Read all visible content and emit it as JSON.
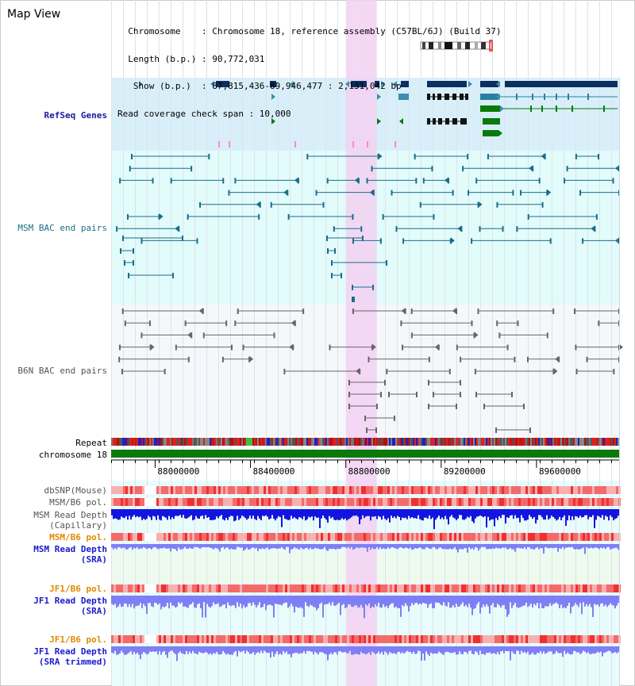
{
  "panel": {
    "title": "Map View"
  },
  "info_lines": [
    "  Chromosome    : Chromosome 18, reference assembly (C57BL/6J) (Build 37)",
    "  Length (b.p.) : 90,772,031",
    "   Show (b.p.)  : 87,815,436-89,946,477 : 2,131,042 bp",
    "Read coverage check span : 10,000"
  ],
  "tracks": [
    {
      "label": "RefSeq Genes",
      "color": "#1a1aa0"
    },
    {
      "label": "MSM BAC end pairs",
      "color": "#1a6e8a"
    },
    {
      "label": "B6N BAC end pairs",
      "color": "#555555"
    },
    {
      "label": "Repeat",
      "color": "#000000"
    },
    {
      "label": "chromosome 18",
      "color": "#000000"
    },
    {
      "label": "dbSNP(Mouse)",
      "color": "#555555"
    },
    {
      "label": "MSM/B6 pol.",
      "color": "#555555"
    },
    {
      "label": "MSM Read Depth\n(Capillary)",
      "color": "#555555"
    },
    {
      "label": "MSM/B6 pol.",
      "color": "#e08a00"
    },
    {
      "label": "MSM Read Depth\n(SRA)",
      "color": "#1a1ad0"
    },
    {
      "label": "JF1/B6 pol.",
      "color": "#e08a00"
    },
    {
      "label": "JF1 Read Depth\n(SRA)",
      "color": "#1a1ad0"
    },
    {
      "label": "JF1/B6 pol.",
      "color": "#e08a00"
    },
    {
      "label": "JF1 Read Depth\n(SRA trimmed)",
      "color": "#1a1ad0"
    }
  ],
  "axis": {
    "start_bp": 87815436,
    "end_bp": 89946477,
    "ticks": [
      "88000000",
      "88400000",
      "88800000",
      "89200000",
      "89600000"
    ],
    "tick_values": [
      88000000,
      88400000,
      88800000,
      89200000,
      89600000
    ]
  },
  "highlight": {
    "start_bp": 88800000,
    "end_bp": 88930000,
    "color": "#f5d0f2"
  },
  "colors": {
    "refseq_bg": "#d8effa",
    "msm_bg": "#e2fbfb",
    "b6n_bg": "#f6f7fb",
    "lower_bg": "#e8fcfc",
    "gene_dark": "#0b2f5e",
    "gene_mid": "#3a8fb0",
    "gene_green": "#0a7a0a",
    "msm_pair": "#1a6e8a",
    "b6n_pair": "#666666",
    "chrom_bar": "#0a7a0a",
    "depth_blue": "#1414e0",
    "depth_light": "#7f7ff5",
    "snp_red": "#f03030",
    "snp_pink": "#f8b0b0"
  }
}
